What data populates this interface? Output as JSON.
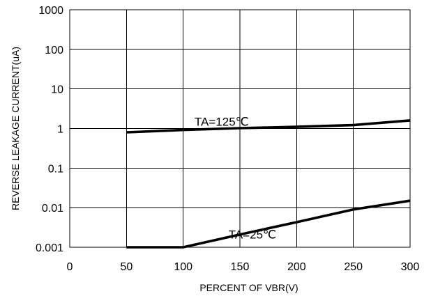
{
  "chart_data": {
    "type": "line",
    "title": "",
    "xlabel": "PERCENT OF VBR(V)",
    "ylabel": "REVERSE LEAKAGE CURRENT(uA)",
    "xlim": [
      0,
      300
    ],
    "ylim": [
      0.001,
      1000
    ],
    "yscale": "log",
    "grid": true,
    "legend": "none",
    "x_ticks": [
      0,
      50,
      100,
      150,
      200,
      250,
      300
    ],
    "x_tick_labels": [
      "0",
      "50",
      "100",
      "150",
      "200",
      "250",
      "300"
    ],
    "y_ticks": [
      1000,
      100,
      10,
      1,
      0.1,
      0.01,
      0.001
    ],
    "y_tick_labels": [
      "1000",
      "100",
      "10",
      "1",
      "0.1",
      "0.01",
      "0.001"
    ],
    "series": [
      {
        "name": "TA=125℃",
        "color": "#000000",
        "x": [
          50,
          100,
          150,
          200,
          250,
          300
        ],
        "y": [
          0.8,
          0.92,
          1.02,
          1.1,
          1.22,
          1.6
        ]
      },
      {
        "name": "TA=25℃",
        "color": "#000000",
        "x": [
          50,
          100,
          150,
          200,
          250,
          300
        ],
        "y": [
          0.001,
          0.001,
          0.0021,
          0.0043,
          0.009,
          0.015
        ]
      }
    ]
  }
}
